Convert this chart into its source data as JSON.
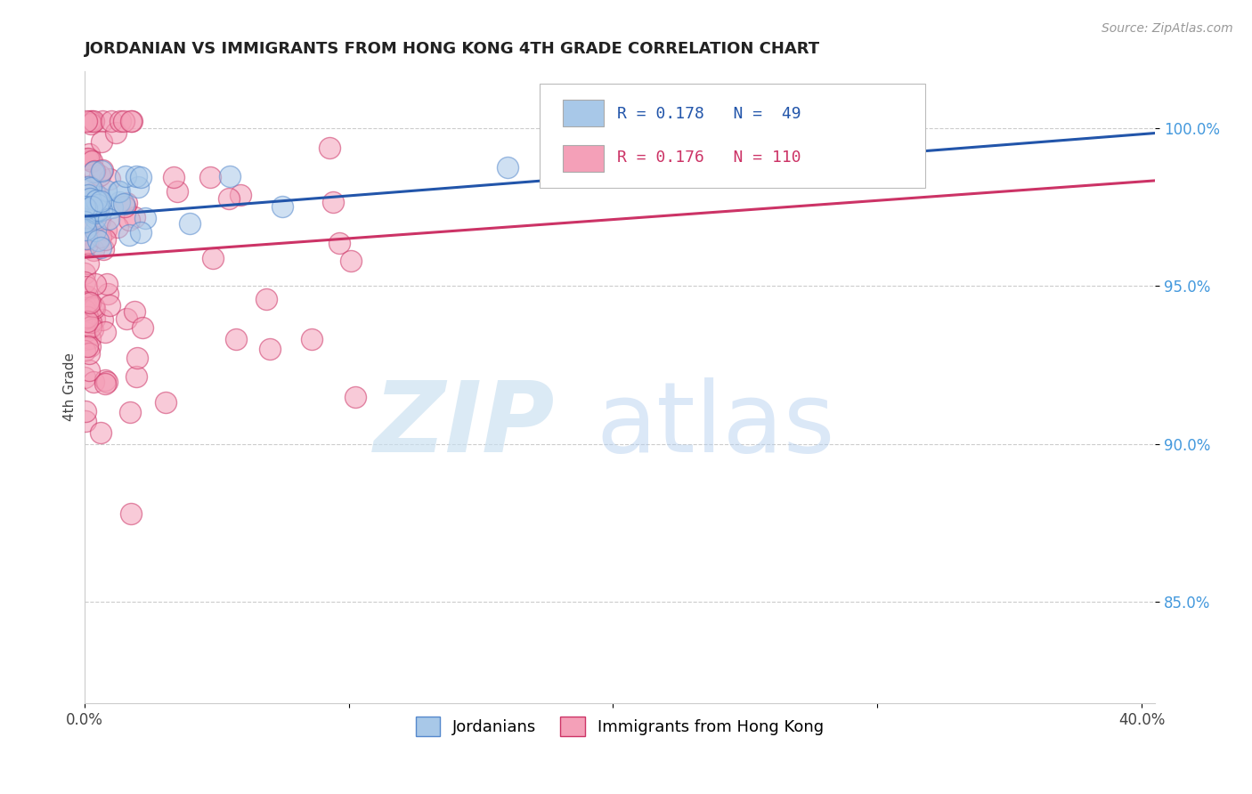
{
  "title": "JORDANIAN VS IMMIGRANTS FROM HONG KONG 4TH GRADE CORRELATION CHART",
  "source": "Source: ZipAtlas.com",
  "xlim": [
    0.0,
    0.405
  ],
  "ylim": [
    0.818,
    1.018
  ],
  "ylabel": "4th Grade",
  "R_jordanian": 0.178,
  "N_jordanian": 49,
  "R_hk": 0.176,
  "N_hk": 110,
  "color_jordanian": "#a8c8e8",
  "color_hk": "#f4a0b8",
  "color_line_jordanian": "#2255aa",
  "color_line_hk": "#cc3366",
  "legend_label_jordanian": "Jordanians",
  "legend_label_hk": "Immigrants from Hong Kong",
  "ytick_vals": [
    0.85,
    0.9,
    0.95,
    1.0
  ],
  "ytick_labels": [
    "85.0%",
    "90.0%",
    "95.0%",
    "100.0%"
  ],
  "xtick_vals": [
    0.0,
    0.1,
    0.2,
    0.3,
    0.4
  ],
  "xtick_labels": [
    "0.0%",
    "",
    "",
    "",
    "40.0%"
  ]
}
